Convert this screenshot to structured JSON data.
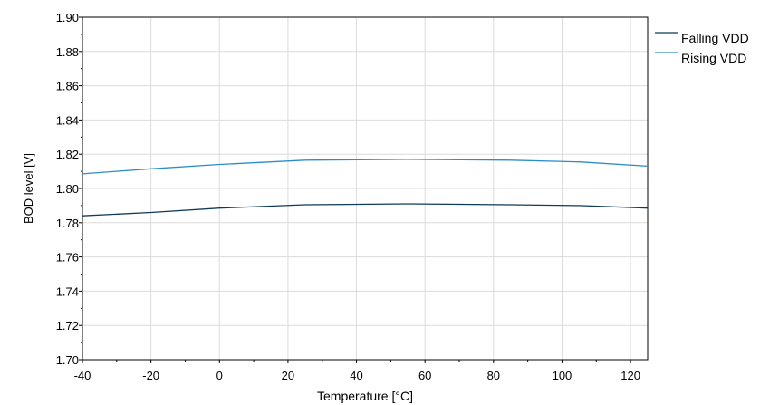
{
  "chart_data": {
    "type": "line",
    "title": "",
    "xlabel": "Temperature [°C]",
    "ylabel": "BOD level [V]",
    "xlim": [
      -40,
      125
    ],
    "ylim": [
      1.7,
      1.9
    ],
    "x_ticks": [
      -40,
      -20,
      0,
      20,
      40,
      60,
      80,
      100,
      120
    ],
    "x_tick_labels": [
      "-40",
      "-20",
      "0",
      "20",
      "40",
      "60",
      "80",
      "100",
      "120"
    ],
    "y_ticks": [
      1.7,
      1.72,
      1.74,
      1.76,
      1.78,
      1.8,
      1.82,
      1.84,
      1.86,
      1.88,
      1.9
    ],
    "y_tick_labels": [
      "1.70",
      "1.72",
      "1.74",
      "1.76",
      "1.78",
      "1.80",
      "1.82",
      "1.84",
      "1.86",
      "1.88",
      "1.90"
    ],
    "grid": true,
    "legend_position": "top-right-outside",
    "series": [
      {
        "name": "Falling VDD",
        "color": "#0f3a5a",
        "x": [
          -40,
          -20,
          0,
          25,
          55,
          85,
          105,
          125
        ],
        "y": [
          1.784,
          1.786,
          1.7885,
          1.7905,
          1.791,
          1.7905,
          1.79,
          1.7885
        ]
      },
      {
        "name": "Rising VDD",
        "color": "#2b8ccc",
        "x": [
          -40,
          -20,
          0,
          25,
          55,
          85,
          105,
          125
        ],
        "y": [
          1.8085,
          1.8115,
          1.814,
          1.8165,
          1.817,
          1.8165,
          1.8155,
          1.813
        ]
      }
    ]
  }
}
